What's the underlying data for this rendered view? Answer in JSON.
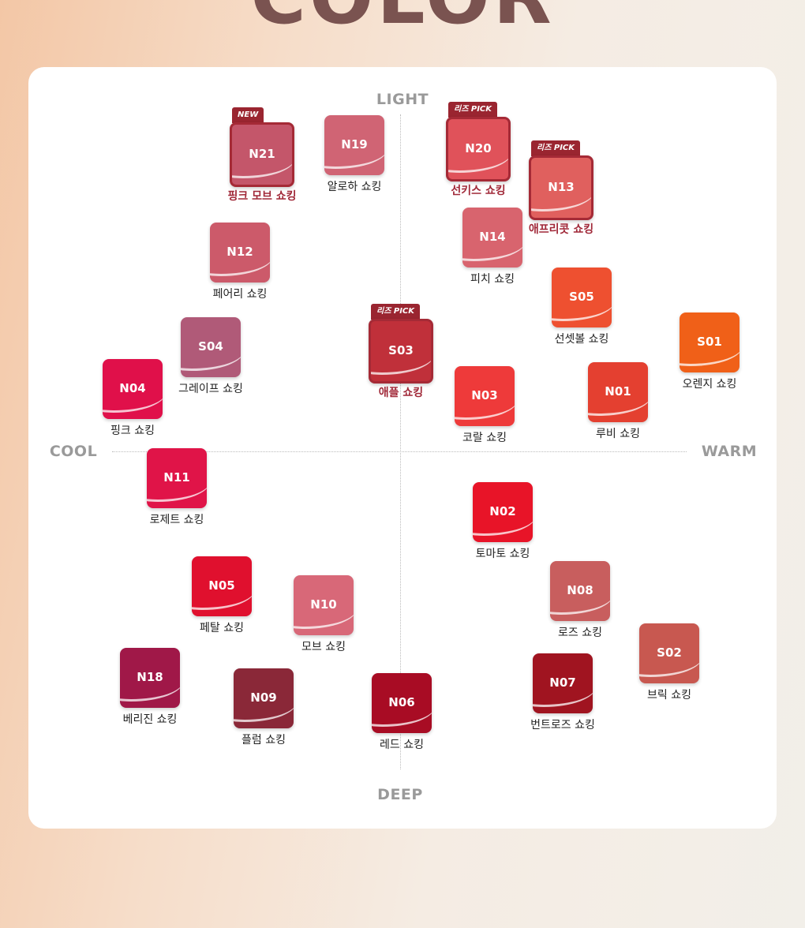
{
  "header": {
    "title": "COLOR"
  },
  "axes": {
    "top": "LIGHT",
    "bottom": "DEEP",
    "left": "COOL",
    "right": "WARM"
  },
  "nodes": [
    {
      "code": "N21",
      "label": "핑크 모브 쇼킹",
      "badge": "NEW",
      "highlight": true,
      "color": "#c4566a"
    },
    {
      "code": "N19",
      "label": "알로하 쇼킹",
      "color": "#d06474"
    },
    {
      "code": "N20",
      "label": "선키스 쇼킹",
      "badge": "리즈 PICK",
      "highlight": true,
      "color": "#e0525a"
    },
    {
      "code": "N13",
      "label": "애프리콧 쇼킹",
      "badge": "리즈 PICK",
      "highlight": true,
      "color": "#e0605e"
    },
    {
      "code": "N12",
      "label": "페어리 쇼킹",
      "color": "#cc5a6a"
    },
    {
      "code": "N14",
      "label": "피치 쇼킹",
      "color": "#d8646e"
    },
    {
      "code": "S05",
      "label": "선셋볼 쇼킹",
      "color": "#ee5030"
    },
    {
      "code": "S04",
      "label": "그레이프 쇼킹",
      "color": "#b05a78"
    },
    {
      "code": "S03",
      "label": "애플 쇼킹",
      "badge": "리즈 PICK",
      "highlight": true,
      "color": "#c0303a"
    },
    {
      "code": "S01",
      "label": "오렌지 쇼킹",
      "color": "#f06018"
    },
    {
      "code": "N04",
      "label": "핑크 쇼킹",
      "color": "#e0104a"
    },
    {
      "code": "N03",
      "label": "코랄 쇼킹",
      "color": "#ee3a3a"
    },
    {
      "code": "N01",
      "label": "루비 쇼킹",
      "color": "#e44030"
    },
    {
      "code": "N11",
      "label": "로제트 쇼킹",
      "color": "#e01448"
    },
    {
      "code": "N02",
      "label": "토마토 쇼킹",
      "color": "#e81428"
    },
    {
      "code": "N05",
      "label": "페탈 쇼킹",
      "color": "#e0102e"
    },
    {
      "code": "N10",
      "label": "모브 쇼킹",
      "color": "#d86878"
    },
    {
      "code": "N08",
      "label": "로즈 쇼킹",
      "color": "#c85e5e"
    },
    {
      "code": "S02",
      "label": "브릭 쇼킹",
      "color": "#c85850"
    },
    {
      "code": "N18",
      "label": "베리진 쇼킹",
      "color": "#a01848"
    },
    {
      "code": "N09",
      "label": "플럼 쇼킹",
      "color": "#8a2838"
    },
    {
      "code": "N06",
      "label": "레드 쇼킹",
      "color": "#a80c24"
    },
    {
      "code": "N07",
      "label": "번트로즈 쇼킹",
      "color": "#a01420"
    }
  ]
}
